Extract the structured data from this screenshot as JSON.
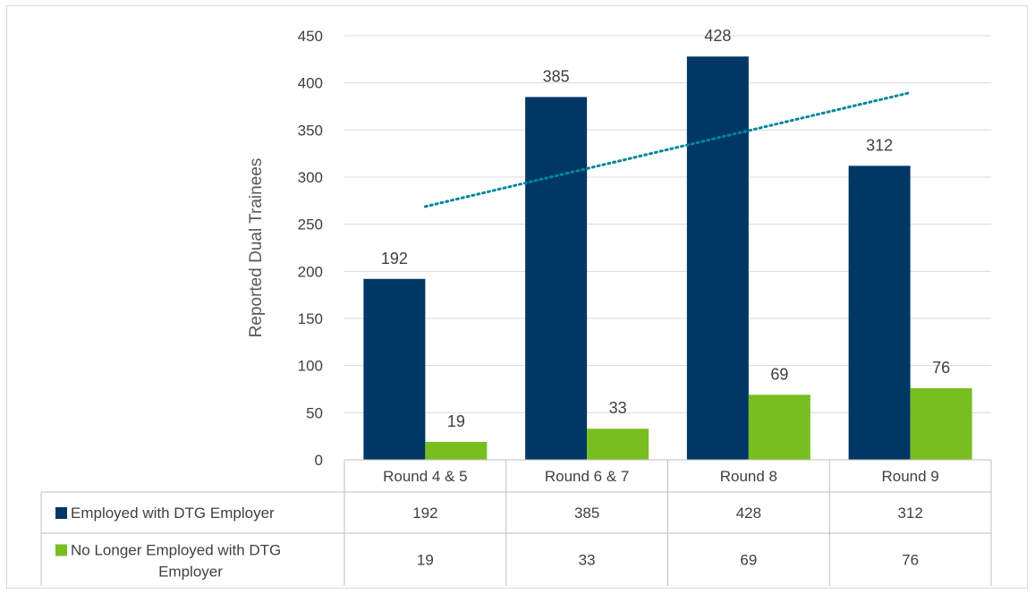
{
  "chart_data": {
    "type": "bar",
    "categories": [
      "Round 4 & 5",
      "Round 6 & 7",
      "Round 8",
      "Round 9"
    ],
    "series": [
      {
        "name": "Employed with DTG Employer",
        "name_lines": [
          "Employed with DTG Employer"
        ],
        "color": "#003764",
        "values": [
          192,
          385,
          428,
          312
        ]
      },
      {
        "name": "No Longer Employed with DTG Employer",
        "name_lines": [
          "No Longer Employed with DTG",
          "Employer"
        ],
        "color": "#78be20",
        "values": [
          19,
          33,
          69,
          76
        ]
      }
    ],
    "trendline": {
      "series": "Employed with DTG Employer",
      "style": "dotted",
      "color": "#00879a"
    },
    "ylabel": "Reported Dual Trainees",
    "ylim": [
      0,
      450
    ],
    "yticks": [
      0,
      50,
      100,
      150,
      200,
      250,
      300,
      350,
      400,
      450
    ],
    "grid": true,
    "data_table": true
  }
}
